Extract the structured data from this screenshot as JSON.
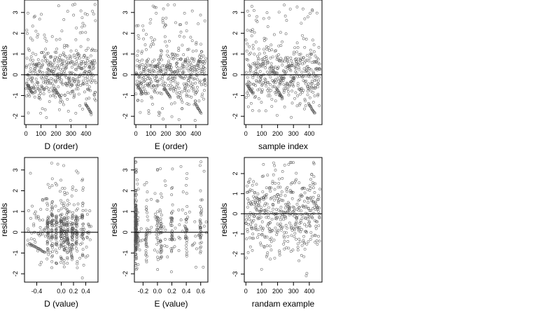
{
  "chart_data": [
    {
      "type": "scatter",
      "xlabel": "D (order)",
      "ylabel": "residuals",
      "xlim": [
        -10,
        480
      ],
      "ylim": [
        -2.4,
        3.6
      ],
      "xticks": [
        0,
        100,
        200,
        300,
        400
      ],
      "yticks": [
        -2,
        -1,
        0,
        1,
        2,
        3
      ],
      "reference_line": 0,
      "n_points": 460,
      "pattern": "order",
      "seed": 11
    },
    {
      "type": "scatter",
      "xlabel": "E (order)",
      "ylabel": "residuals",
      "xlim": [
        -10,
        480
      ],
      "ylim": [
        -2.4,
        3.6
      ],
      "xticks": [
        0,
        100,
        200,
        300,
        400
      ],
      "yticks": [
        -2,
        -1,
        0,
        1,
        2,
        3
      ],
      "reference_line": 0,
      "n_points": 460,
      "pattern": "order",
      "seed": 23
    },
    {
      "type": "scatter",
      "xlabel": "sample index",
      "ylabel": "residuals",
      "xlim": [
        -10,
        480
      ],
      "ylim": [
        -2.4,
        3.6
      ],
      "xticks": [
        0,
        100,
        200,
        300,
        400
      ],
      "yticks": [
        -2,
        -1,
        0,
        1,
        2,
        3
      ],
      "reference_line": 0,
      "n_points": 460,
      "pattern": "order",
      "seed": 37
    },
    {
      "type": "scatter",
      "xlabel": "D (value)",
      "ylabel": "residuals",
      "xlim": [
        -0.6,
        0.6
      ],
      "ylim": [
        -2.4,
        3.6
      ],
      "xticks": [
        -0.4,
        0.0,
        0.2,
        0.4
      ],
      "xtick_labels": [
        "-0.4",
        "0.0",
        "0.2",
        "0.4"
      ],
      "yticks": [
        -2,
        -1,
        0,
        1,
        2,
        3
      ],
      "reference_line": 0,
      "n_points": 460,
      "pattern": "value-d",
      "seed": 41
    },
    {
      "type": "scatter",
      "xlabel": "E (value)",
      "ylabel": "residuals",
      "xlim": [
        -0.32,
        0.7
      ],
      "ylim": [
        -2.4,
        3.6
      ],
      "xticks": [
        -0.2,
        0.0,
        0.2,
        0.4,
        0.6
      ],
      "xtick_labels": [
        "-0.2",
        "0.0",
        "0.2",
        "0.4",
        "0.6"
      ],
      "yticks": [
        -2,
        -1,
        0,
        1,
        2,
        3
      ],
      "reference_line": 0,
      "n_points": 460,
      "pattern": "value-e",
      "seed": 53
    },
    {
      "type": "scatter",
      "xlabel": "randam example",
      "ylabel": "residuals",
      "xlim": [
        -10,
        480
      ],
      "ylim": [
        -3.4,
        2.8
      ],
      "xticks": [
        0,
        100,
        200,
        300,
        400
      ],
      "yticks": [
        -3,
        -2,
        -1,
        0,
        1,
        2
      ],
      "reference_line": 0,
      "n_points": 460,
      "pattern": "random",
      "seed": 67
    }
  ]
}
